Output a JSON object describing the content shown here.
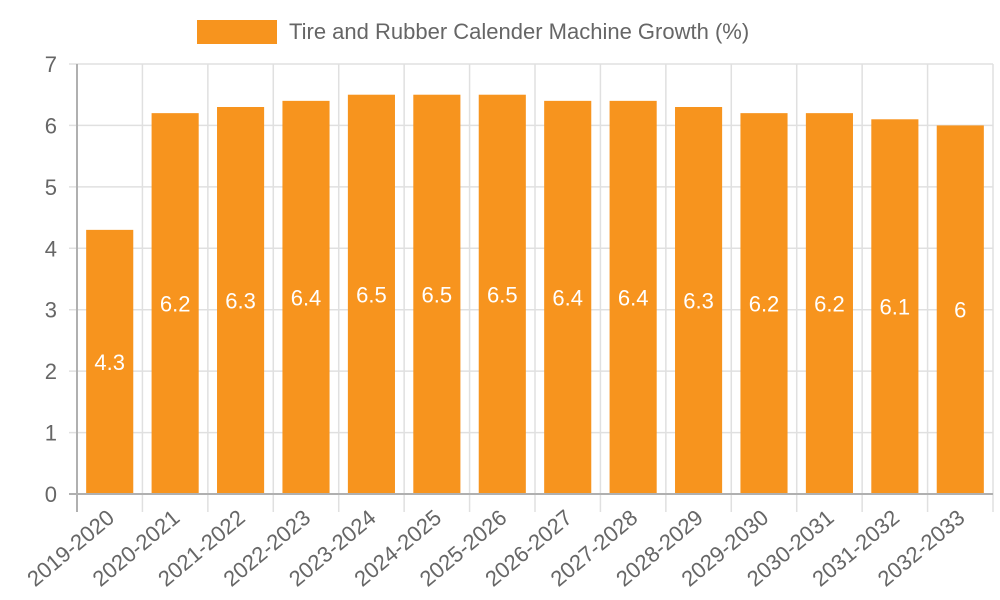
{
  "colors": {
    "bar": "#F7941E",
    "grid": "#e0e0e0",
    "axis": "#b0b0b0",
    "text": "#666666",
    "data_label": "#ffffff"
  },
  "legend": {
    "label": "Tire and Rubber Calender Machine Growth (%)"
  },
  "chart_data": {
    "type": "bar",
    "title": "",
    "xlabel": "",
    "ylabel": "",
    "ylim": [
      0,
      7
    ],
    "yticks": [
      0,
      1,
      2,
      3,
      4,
      5,
      6,
      7
    ],
    "grid": true,
    "legend_position": "top",
    "categories": [
      "2019-2020",
      "2020-2021",
      "2021-2022",
      "2022-2023",
      "2023-2024",
      "2024-2025",
      "2025-2026",
      "2026-2027",
      "2027-2028",
      "2028-2029",
      "2029-2030",
      "2030-2031",
      "2031-2032",
      "2032-2033"
    ],
    "series": [
      {
        "name": "Tire and Rubber Calender Machine Growth (%)",
        "values": [
          4.3,
          6.2,
          6.3,
          6.4,
          6.5,
          6.5,
          6.5,
          6.4,
          6.4,
          6.3,
          6.2,
          6.2,
          6.1,
          6
        ]
      }
    ],
    "data_labels": [
      "4.3",
      "6.2",
      "6.3",
      "6.4",
      "6.5",
      "6.5",
      "6.5",
      "6.4",
      "6.4",
      "6.3",
      "6.2",
      "6.2",
      "6.1",
      "6"
    ]
  }
}
